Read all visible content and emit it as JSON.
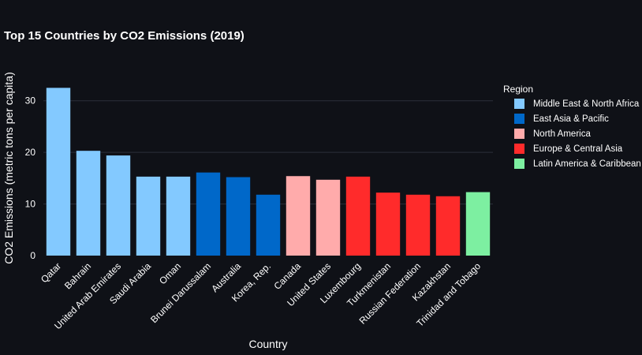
{
  "chart_data": {
    "type": "bar",
    "title": "Top 15 Countries by CO2 Emissions (2019)",
    "xlabel": "Country",
    "ylabel": "CO2 Emissions (metric tons per capita)",
    "ylim": [
      0,
      35
    ],
    "yticks": [
      0,
      10,
      20,
      30
    ],
    "grid": true,
    "legend_title": "Region",
    "legend_position": "right",
    "categories": [
      "Qatar",
      "Bahrain",
      "United Arab Emirates",
      "Saudi Arabia",
      "Oman",
      "Brunei Darussalam",
      "Australia",
      "Korea, Rep.",
      "Canada",
      "United States",
      "Luxembourg",
      "Turkmenistan",
      "Russian Federation",
      "Kazakhstan",
      "Trinidad and Tobago"
    ],
    "values": [
      32.5,
      20.3,
      19.4,
      15.3,
      15.3,
      16.1,
      15.2,
      11.8,
      15.4,
      14.7,
      15.3,
      12.2,
      11.8,
      11.5,
      12.3
    ],
    "regions": [
      "Middle East & North Africa",
      "Middle East & North Africa",
      "Middle East & North Africa",
      "Middle East & North Africa",
      "Middle East & North Africa",
      "East Asia & Pacific",
      "East Asia & Pacific",
      "East Asia & Pacific",
      "North America",
      "North America",
      "Europe & Central Asia",
      "Europe & Central Asia",
      "Europe & Central Asia",
      "Europe & Central Asia",
      "Latin America & Caribbean"
    ],
    "legend": [
      {
        "name": "Middle East & North Africa",
        "color": "#83c9ff"
      },
      {
        "name": "East Asia & Pacific",
        "color": "#0068c9"
      },
      {
        "name": "North America",
        "color": "#ffabab"
      },
      {
        "name": "Europe & Central Asia",
        "color": "#ff2b2b"
      },
      {
        "name": "Latin America & Caribbean",
        "color": "#7defa1"
      }
    ]
  }
}
